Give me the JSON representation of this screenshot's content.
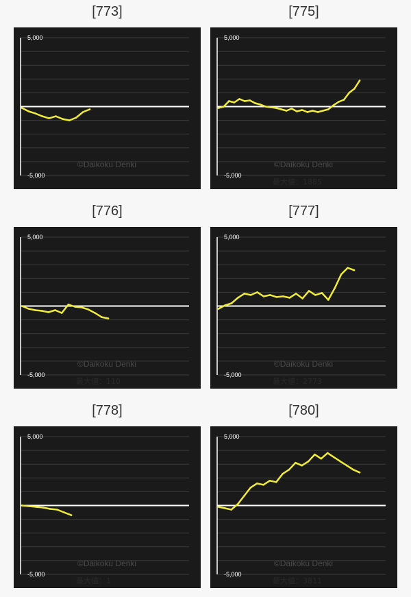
{
  "colors": {
    "panel_bg": "#1a1a1a",
    "grid": "#3c3c3c",
    "axis": "#ffffff",
    "line": "#f0ea3c",
    "zero_line": "#ffffff",
    "watermark": "#4a4a4a",
    "max_label": "#2a2a2a"
  },
  "chart_data": [
    {
      "type": "line",
      "title": "[773]",
      "ylim": [
        -5000,
        5000
      ],
      "ytick_labels": [
        "5,000",
        "-5,000"
      ],
      "grid": true,
      "watermark": "©Daikoku Denki",
      "max_label": "",
      "y": [
        -100,
        -350,
        -500,
        -700,
        -850,
        -700,
        -900,
        -1000,
        -800,
        -400,
        -200
      ]
    },
    {
      "type": "line",
      "title": "[775]",
      "ylim": [
        -5000,
        5000
      ],
      "ytick_labels": [
        "5,000",
        "-5,000"
      ],
      "grid": true,
      "watermark": "©Daikoku Denki",
      "max_label": "最大値：1885",
      "y": [
        -100,
        0,
        400,
        300,
        550,
        400,
        450,
        250,
        150,
        0,
        -50,
        -100,
        -200,
        -300,
        -150,
        -350,
        -250,
        -400,
        -300,
        -400,
        -300,
        -200,
        100,
        350,
        500,
        1000,
        1300,
        1885
      ]
    },
    {
      "type": "line",
      "title": "[776]",
      "ylim": [
        -5000,
        5000
      ],
      "ytick_labels": [
        "5,000",
        "-5,000"
      ],
      "grid": true,
      "watermark": "©Daikoku Denki",
      "max_label": "最大値：110",
      "y": [
        0,
        -200,
        -300,
        -350,
        -450,
        -300,
        -500,
        110,
        -50,
        -100,
        -250,
        -500,
        -800,
        -900
      ]
    },
    {
      "type": "line",
      "title": "[777]",
      "ylim": [
        -5000,
        5000
      ],
      "ytick_labels": [
        "5,000",
        "-5,000"
      ],
      "grid": true,
      "watermark": "©Daikoku Denki",
      "max_label": "最大値：2773",
      "y": [
        -200,
        50,
        200,
        600,
        900,
        800,
        1000,
        700,
        800,
        650,
        700,
        600,
        900,
        550,
        1100,
        800,
        950,
        450,
        1300,
        2300,
        2773,
        2600
      ]
    },
    {
      "type": "line",
      "title": "[778]",
      "ylim": [
        -5000,
        5000
      ],
      "ytick_labels": [
        "5,000",
        "-5,000"
      ],
      "grid": true,
      "watermark": "©Daikoku Denki",
      "max_label": "最大値：1",
      "y": [
        1,
        -50,
        -100,
        -150,
        -250,
        -300,
        -500,
        -700
      ]
    },
    {
      "type": "line",
      "title": "[780]",
      "ylim": [
        -5000,
        5000
      ],
      "ytick_labels": [
        "5,000",
        "-5,000"
      ],
      "grid": true,
      "watermark": "©Daikoku Denki",
      "max_label": "最大値：3811",
      "y": [
        -100,
        -200,
        -300,
        100,
        700,
        1300,
        1600,
        1500,
        1800,
        1700,
        2300,
        2600,
        3100,
        2900,
        3200,
        3700,
        3400,
        3811,
        3500,
        3200,
        2900,
        2600,
        2400
      ]
    }
  ]
}
